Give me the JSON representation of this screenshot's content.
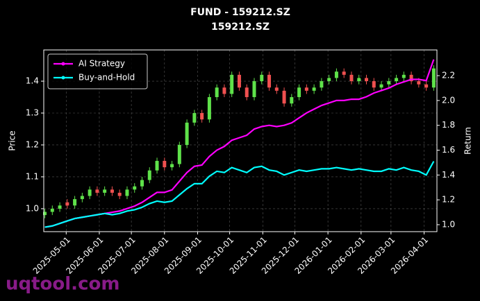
{
  "chart_data": {
    "type": "candlestick",
    "title": "FUND - 159212.SZ",
    "subtitle": "159212.SZ",
    "y_label": "Price",
    "y2_label": "Return",
    "watermark": "uqtool.com",
    "x": [
      "2025-04-11",
      "2025-04-18",
      "2025-04-25",
      "2025-05-02",
      "2025-05-09",
      "2025-05-16",
      "2025-05-23",
      "2025-05-30",
      "2025-06-06",
      "2025-06-13",
      "2025-06-20",
      "2025-06-27",
      "2025-07-04",
      "2025-07-11",
      "2025-07-18",
      "2025-07-25",
      "2025-08-01",
      "2025-08-08",
      "2025-08-15",
      "2025-08-22",
      "2025-08-29",
      "2025-09-05",
      "2025-09-12",
      "2025-09-19",
      "2025-09-26",
      "2025-10-03",
      "2025-10-10",
      "2025-10-17",
      "2025-10-24",
      "2025-10-31",
      "2025-11-07",
      "2025-11-14",
      "2025-11-21",
      "2025-11-28",
      "2025-12-05",
      "2025-12-12",
      "2025-12-19",
      "2025-12-26",
      "2026-01-02",
      "2026-01-09",
      "2026-01-16",
      "2026-01-23",
      "2026-01-30",
      "2026-02-06",
      "2026-02-13",
      "2026-02-20",
      "2026-02-27",
      "2026-03-06",
      "2026-03-13",
      "2026-03-20",
      "2026-03-27",
      "2026-04-03",
      "2026-04-10"
    ],
    "open": [
      0.98,
      0.99,
      1.0,
      1.02,
      1.01,
      1.03,
      1.04,
      1.06,
      1.05,
      1.06,
      1.05,
      1.04,
      1.06,
      1.07,
      1.09,
      1.12,
      1.15,
      1.13,
      1.14,
      1.2,
      1.27,
      1.3,
      1.28,
      1.35,
      1.38,
      1.36,
      1.42,
      1.38,
      1.35,
      1.4,
      1.42,
      1.38,
      1.37,
      1.33,
      1.35,
      1.38,
      1.37,
      1.38,
      1.4,
      1.41,
      1.43,
      1.42,
      1.4,
      1.41,
      1.4,
      1.38,
      1.39,
      1.4,
      1.41,
      1.42,
      1.4,
      1.39,
      1.38
    ],
    "high": [
      1.0,
      1.01,
      1.02,
      1.03,
      1.04,
      1.05,
      1.07,
      1.07,
      1.07,
      1.07,
      1.06,
      1.07,
      1.08,
      1.1,
      1.13,
      1.16,
      1.16,
      1.15,
      1.21,
      1.28,
      1.31,
      1.31,
      1.36,
      1.39,
      1.39,
      1.43,
      1.43,
      1.39,
      1.41,
      1.43,
      1.43,
      1.39,
      1.38,
      1.36,
      1.39,
      1.39,
      1.39,
      1.41,
      1.42,
      1.44,
      1.44,
      1.43,
      1.42,
      1.42,
      1.41,
      1.4,
      1.41,
      1.42,
      1.43,
      1.43,
      1.41,
      1.4,
      1.45
    ],
    "low": [
      0.97,
      0.98,
      0.99,
      1.0,
      1.0,
      1.02,
      1.03,
      1.04,
      1.04,
      1.04,
      1.03,
      1.03,
      1.05,
      1.06,
      1.08,
      1.11,
      1.12,
      1.12,
      1.13,
      1.19,
      1.26,
      1.27,
      1.27,
      1.34,
      1.35,
      1.35,
      1.37,
      1.34,
      1.34,
      1.39,
      1.37,
      1.36,
      1.32,
      1.32,
      1.34,
      1.36,
      1.36,
      1.37,
      1.39,
      1.4,
      1.41,
      1.39,
      1.39,
      1.39,
      1.37,
      1.37,
      1.38,
      1.39,
      1.4,
      1.39,
      1.38,
      1.37,
      1.37
    ],
    "close": [
      0.99,
      1.0,
      1.01,
      1.01,
      1.03,
      1.04,
      1.06,
      1.05,
      1.06,
      1.05,
      1.04,
      1.06,
      1.07,
      1.09,
      1.12,
      1.15,
      1.13,
      1.14,
      1.2,
      1.27,
      1.3,
      1.28,
      1.35,
      1.38,
      1.36,
      1.42,
      1.38,
      1.35,
      1.4,
      1.42,
      1.38,
      1.37,
      1.33,
      1.35,
      1.38,
      1.37,
      1.38,
      1.4,
      1.41,
      1.43,
      1.42,
      1.4,
      1.41,
      1.4,
      1.38,
      1.39,
      1.4,
      1.41,
      1.42,
      1.4,
      1.39,
      1.38,
      1.44
    ],
    "up_color": "#5fe24a",
    "down_color": "#f05050",
    "series": [
      {
        "name": "AI Strategy",
        "color": "#ff00ff",
        "axis": "y2",
        "values": [
          0.98,
          0.99,
          1.01,
          1.03,
          1.05,
          1.06,
          1.07,
          1.08,
          1.09,
          1.1,
          1.11,
          1.13,
          1.15,
          1.18,
          1.22,
          1.26,
          1.26,
          1.28,
          1.35,
          1.42,
          1.47,
          1.48,
          1.55,
          1.6,
          1.63,
          1.68,
          1.7,
          1.72,
          1.77,
          1.79,
          1.8,
          1.79,
          1.8,
          1.82,
          1.86,
          1.9,
          1.93,
          1.96,
          1.98,
          2.0,
          2.0,
          2.01,
          2.01,
          2.03,
          2.06,
          2.08,
          2.1,
          2.13,
          2.15,
          2.17,
          2.17,
          2.16,
          2.33
        ]
      },
      {
        "name": "Buy-and-Hold",
        "color": "#00ffff",
        "axis": "y2",
        "values": [
          0.98,
          0.99,
          1.01,
          1.03,
          1.05,
          1.06,
          1.07,
          1.08,
          1.09,
          1.08,
          1.09,
          1.11,
          1.12,
          1.14,
          1.17,
          1.19,
          1.18,
          1.19,
          1.24,
          1.29,
          1.33,
          1.33,
          1.39,
          1.43,
          1.42,
          1.46,
          1.44,
          1.42,
          1.46,
          1.47,
          1.44,
          1.43,
          1.4,
          1.42,
          1.44,
          1.43,
          1.44,
          1.45,
          1.45,
          1.46,
          1.45,
          1.44,
          1.45,
          1.44,
          1.43,
          1.43,
          1.45,
          1.44,
          1.46,
          1.44,
          1.43,
          1.4,
          1.51
        ]
      }
    ],
    "xlim": [
      "2025-04-10",
      "2026-04-13"
    ],
    "xticks": [
      "2025-05-01",
      "2025-06-01",
      "2025-07-01",
      "2025-08-01",
      "2025-09-01",
      "2025-10-01",
      "2025-11-01",
      "2025-12-01",
      "2026-01-01",
      "2026-02-01",
      "2026-03-01",
      "2026-04-01"
    ],
    "ylim": [
      0.928,
      1.498
    ],
    "yticks": [
      {
        "value": 1,
        "label": "1.0"
      },
      1.1,
      1.2,
      1.3,
      1.4
    ],
    "y2lim": [
      0.944,
      2.407
    ],
    "y2ticks": [
      {
        "value": 1,
        "label": "1.0"
      },
      1.2,
      1.4,
      1.6,
      1.8,
      {
        "value": 2,
        "label": "2.0"
      },
      2.2
    ],
    "grid": true,
    "legend": "upper left"
  }
}
